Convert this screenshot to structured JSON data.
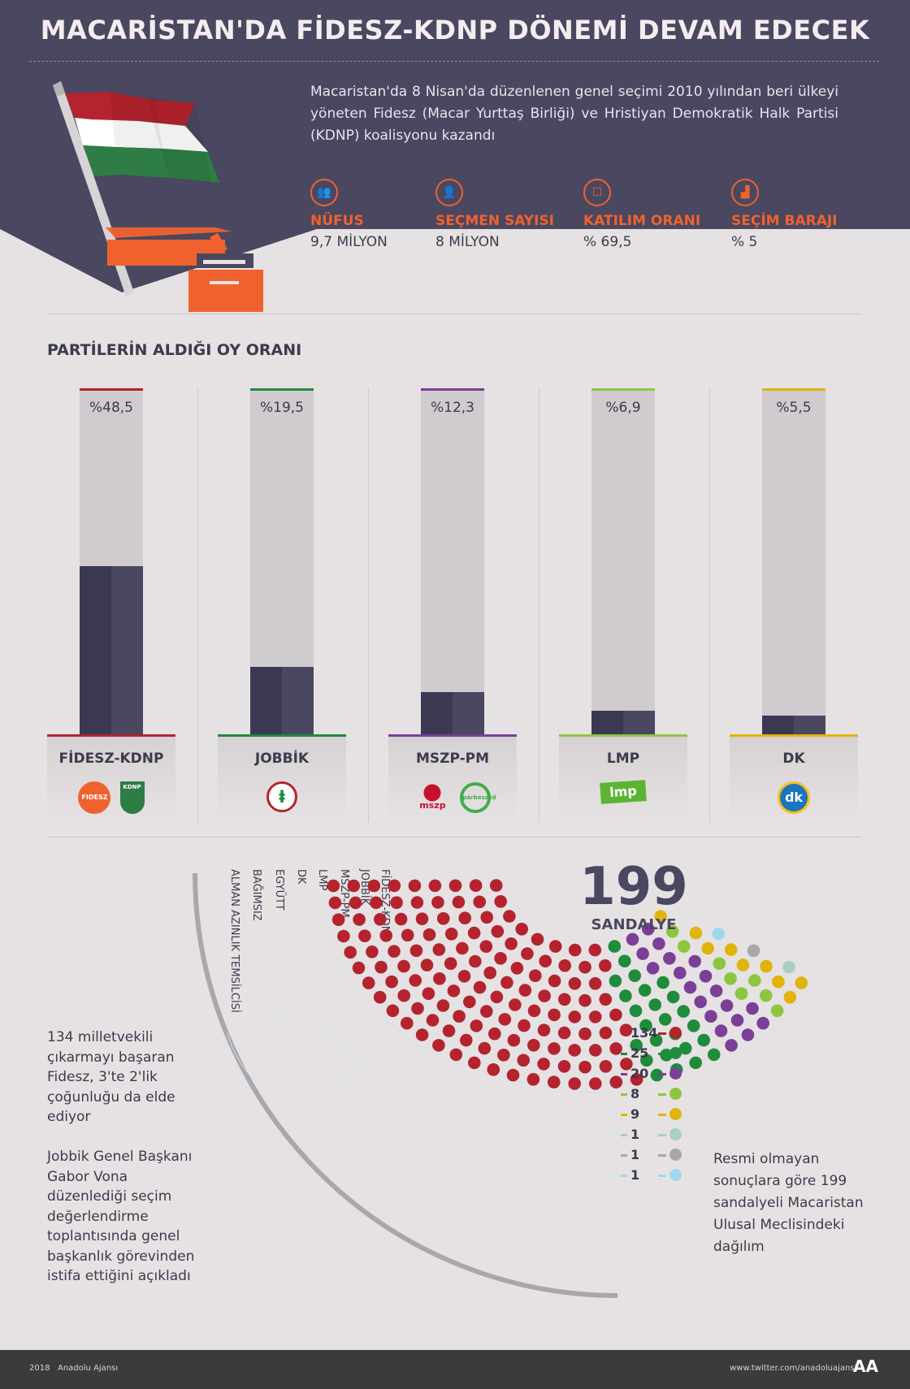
{
  "title": "MACARİSTAN'DA FİDESZ-KDNP DÖNEMİ DEVAM EDECEK",
  "intro": "Macaristan'da 8 Nisan'da düzenlenen genel seçimi 2010 yılından beri ülkeyi yöneten Fidesz (Macar Yurttaş Birliği) ve Hristiyan Demokratik Halk Partisi (KDNP) koalisyonu kazandı",
  "stats": [
    {
      "label": "NÜFUS",
      "value": "9,7 MİLYON",
      "icon": "people-icon"
    },
    {
      "label": "SEÇMEN SAYISI",
      "value": "8 MİLYON",
      "icon": "person-icon"
    },
    {
      "label": "KATILIM ORANI",
      "value": "% 69,5",
      "icon": "ballot-box-icon"
    },
    {
      "label": "SEÇİM BARAJI",
      "value": "% 5",
      "icon": "threshold-icon"
    }
  ],
  "section_title": "PARTİLERİN ALDIĞI OY ORANI",
  "colors": {
    "navy": "#4a4760",
    "orange": "#f0622d",
    "fidesz": "#b5232e",
    "jobbik": "#1f8c3c",
    "mszp": "#7b3f98",
    "lmp": "#8cc63f",
    "dk": "#e0b40a"
  },
  "logos": {
    "fidesz": "FIDESZ",
    "kdnp": "KDNP",
    "mszp": "mszp",
    "parbeszed": "párbeszéd",
    "lmp": "lmp",
    "dk": "dk"
  },
  "chart_data": [
    {
      "type": "bar",
      "title": "PARTİLERİN ALDIĞI OY ORANI",
      "categories": [
        "FİDESZ-KDNP",
        "JOBBİK",
        "MSZP-PM",
        "LMP",
        "DK"
      ],
      "values": [
        48.5,
        19.5,
        12.3,
        6.9,
        5.5
      ],
      "labels": [
        "%48,5",
        "%19,5",
        "%12,3",
        "%6,9",
        "%5,5"
      ],
      "colors": [
        "#b5232e",
        "#1f8c3c",
        "#7b3f98",
        "#8cc63f",
        "#e0b40a"
      ],
      "ylim": [
        0,
        100
      ]
    },
    {
      "type": "parliament",
      "title": "199 SANDALYE",
      "total": "199",
      "total_label": "SANDALYE",
      "series": [
        {
          "name": "FİDESZ-KDNP",
          "value": 134,
          "label": "134",
          "color": "#b5232e"
        },
        {
          "name": "JOBBİK",
          "value": 25,
          "label": "25",
          "color": "#1f8c3c"
        },
        {
          "name": "MSZP-PM",
          "value": 20,
          "label": "20",
          "color": "#7b3f98"
        },
        {
          "name": "LMP",
          "value": 8,
          "label": "8",
          "color": "#8cc63f"
        },
        {
          "name": "DK",
          "value": 9,
          "label": "9",
          "color": "#e0b40a"
        },
        {
          "name": "EGYÜTT",
          "value": 1,
          "label": "1",
          "color": "#a6cfc6"
        },
        {
          "name": "BAĞIMSIZ",
          "value": 1,
          "label": "1",
          "color": "#a7a7a9"
        },
        {
          "name": "ALMAN AZINLIK TEMSİLCİSİ",
          "value": 1,
          "label": "1",
          "color": "#9fd8ee"
        }
      ]
    }
  ],
  "note1": "134 milletvekili çıkarmayı başaran Fidesz, 3'te 2'lik çoğunluğu da elde ediyor",
  "note2": "Jobbik Genel Başkanı Gabor Vona düzenlediği seçim değerlendirme toplantısında genel başkanlık görevinden istifa ettiğini açıkladı",
  "resmi": "Resmi olmayan sonuçlara göre 199 sandalyeli Macaristan Ulusal Meclisindeki dağılım",
  "footer": {
    "year": "2018",
    "agency": "Anadolu Ajansı",
    "twitter": "www.twitter.com/anadoluajansi",
    "logo": "AA"
  }
}
